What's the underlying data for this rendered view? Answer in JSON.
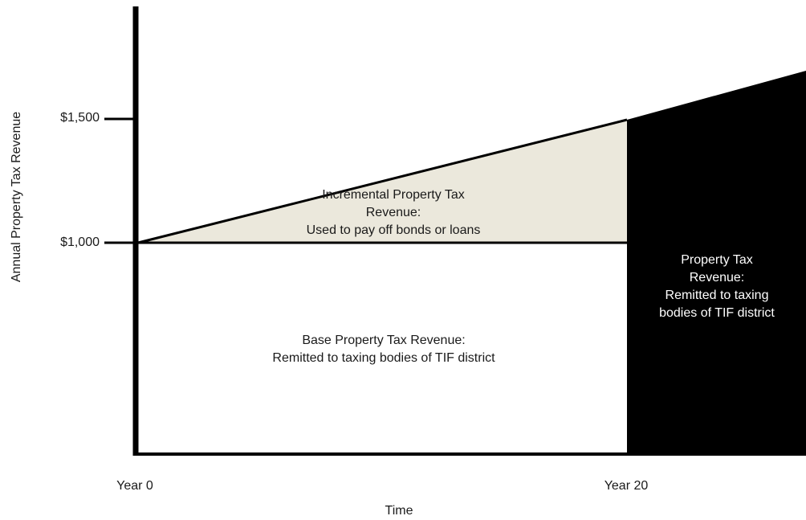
{
  "axes": {
    "y_label": "Annual Property Tax Revenue",
    "x_label": "Time",
    "y_ticks": [
      "$1,500",
      "$1,000"
    ],
    "x_ticks": [
      "Year 0",
      "Year 20"
    ]
  },
  "regions": {
    "incremental": {
      "line1": "Incremental Property Tax",
      "line2": "Revenue:",
      "line3": "Used to pay off bonds or loans"
    },
    "base": {
      "line1": "Base Property Tax Revenue:",
      "line2": "Remitted to taxing bodies of TIF district"
    },
    "after": {
      "line1": "Property Tax",
      "line2": "Revenue:",
      "line3": "Remitted to taxing",
      "line4": "bodies of TIF district"
    }
  },
  "colors": {
    "incremental_fill": "#ebe8dc",
    "after_fill": "#000000",
    "axis": "#000000"
  }
}
